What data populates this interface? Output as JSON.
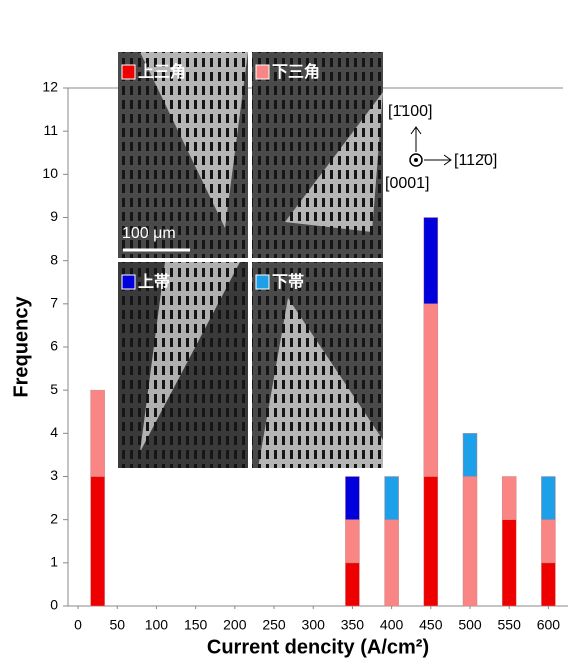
{
  "chart_data": {
    "type": "stacked_bar",
    "x": [
      25,
      350,
      400,
      450,
      500,
      550,
      600
    ],
    "series": [
      {
        "name": "上三角",
        "color": "#ee0000",
        "values": [
          3,
          1,
          0,
          3,
          0,
          2,
          1
        ]
      },
      {
        "name": "下三角",
        "color": "#f98585",
        "values": [
          2,
          1,
          2,
          4,
          3,
          1,
          1
        ]
      },
      {
        "name": "上帯",
        "color": "#0000dd",
        "values": [
          0,
          1,
          0,
          2,
          0,
          0,
          0
        ]
      },
      {
        "name": "下帯",
        "color": "#1ca0ea",
        "values": [
          0,
          0,
          1,
          0,
          1,
          0,
          1
        ]
      }
    ],
    "xlabel": "Current dencity (A/cm²)",
    "ylabel": "Frequency",
    "xlim": [
      -12.8,
      625
    ],
    "ylim": [
      0,
      12
    ],
    "xticks": [
      0,
      50,
      100,
      150,
      200,
      250,
      300,
      350,
      400,
      450,
      500,
      550,
      600
    ],
    "yticks": [
      0,
      1,
      2,
      3,
      4,
      5,
      6,
      7,
      8,
      9,
      10,
      11,
      12
    ],
    "annotations": [
      "100 μm",
      "[1̄100]",
      "[112̄0]",
      "[0001]"
    ]
  }
}
